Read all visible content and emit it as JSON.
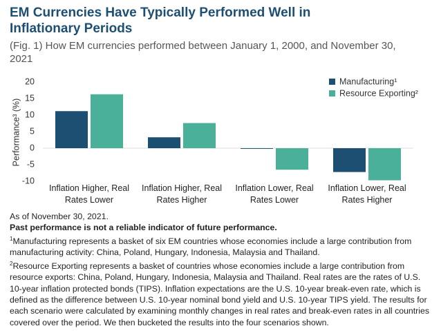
{
  "chart_data": {
    "type": "bar",
    "title": "EM Currencies Have Typically Performed Well in Inflationary Periods",
    "subtitle": "(Fig. 1) How EM currencies performed between January 1, 2000, and November 30, 2021",
    "y_label": "Performance³ (%)",
    "categories": [
      "Inflation Higher, Real Rates Lower",
      "Inflation Higher, Real Rates Higher",
      "Inflation Lower, Real Rates Lower",
      "Inflation Lower, Real Rates Higher"
    ],
    "series": [
      {
        "name": "Manufacturing¹",
        "color": "#1d4f73",
        "values": [
          11.2,
          3.3,
          -0.2,
          -7.2
        ]
      },
      {
        "name": "Resource Exporting²",
        "color": "#4bb09a",
        "values": [
          16.3,
          7.6,
          -6.5,
          -9.7
        ]
      }
    ],
    "ylim": [
      -10,
      20
    ],
    "yticks": [
      -10,
      -5,
      0,
      5,
      10,
      15,
      20
    ],
    "grid": false,
    "legend": "top-right"
  },
  "notes": {
    "as_of": "As of November 30, 2021.",
    "disclaimer": "Past performance is not a reliable indicator of future performance.",
    "footnotes": [
      {
        "marker": "1",
        "text": "Manufacturing represents a basket of six EM countries whose economies include a large contribution from manufacturing activity: China, Poland, Hungary, Indonesia, Malaysia and Thailand."
      },
      {
        "marker": "2",
        "text": "Resource Exporting represents a basket of countries whose economies include a large contribution from resource exports: China, Poland, Hungary, Indonesia, Malaysia and Thailand. Real rates are the rates of U.S. 10-year inflation protected bonds (TIPS). Inflation expectations are the U.S. 10-year break-even rate, which is defined as the difference between U.S. 10-year nominal bond yield and U.S. 10-year TIPS yield. The results for each scenario were calculated by examining monthly changes in real rates and break-even rates in all countries covered over the period. We then bucketed the results into the four scenarios shown."
      }
    ]
  }
}
